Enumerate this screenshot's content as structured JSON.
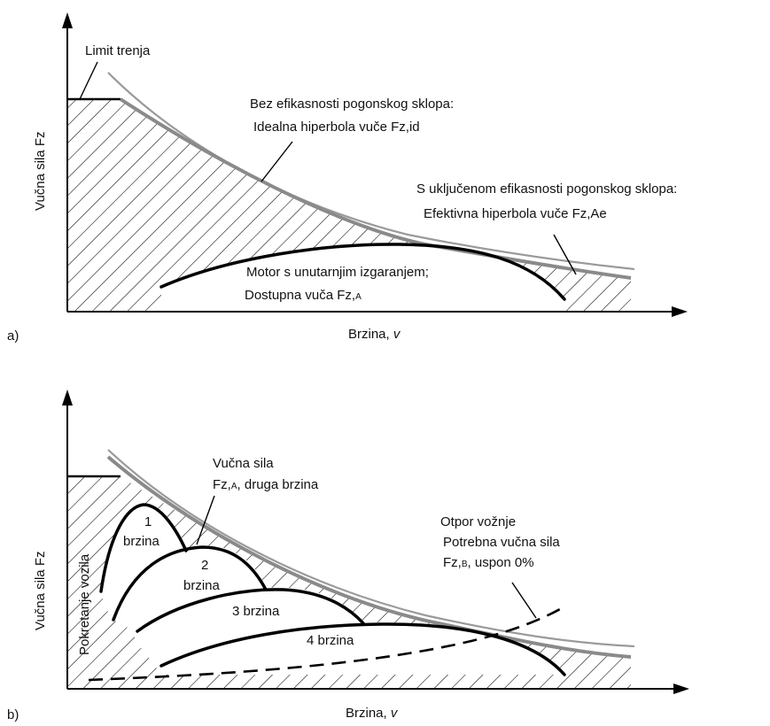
{
  "panel_a": {
    "label": "a)",
    "y_axis_label": "Vučna sila Fz",
    "x_axis_label": "Brzina, ",
    "x_axis_symbol": "v",
    "limit_label": "Limit trenja",
    "ideal_line1": "Bez efikasnosti pogonskog sklopa:",
    "ideal_line2": "Idealna hiperbola vuče Fz,id",
    "effective_line1": "S uključenom efikasnosti pogonskog sklopa:",
    "effective_line2": "Efektivna hiperbola vuče Fz,Ae",
    "engine_line1": "Motor s unutarnjim izgaranjem;",
    "engine_line2": "Dostupna vuča Fz,",
    "engine_line2_sub": "A"
  },
  "panel_b": {
    "label": "b)",
    "y_axis_label": "Vučna sila Fz",
    "x_axis_label": "Brzina, ",
    "x_axis_symbol": "v",
    "start_label": "Pokretanje vozila",
    "gear1_number": "1",
    "gear1_word": "brzina",
    "gear2_number": "2",
    "gear2_word": "brzina",
    "gear3_label": "3 brzina",
    "gear4_label": "4 brzina",
    "second_gear_line1": "Vučna sila",
    "second_gear_line2_pre": "Fz,",
    "second_gear_line2_sub": "A",
    "second_gear_line2_post": ", druga brzina",
    "resistance_line1": "Otpor vožnje",
    "resistance_line2": "Potrebna vučna sila",
    "resistance_line3_pre": "Fz,",
    "resistance_line3_sub": "B",
    "resistance_line3_post": ", uspon 0%"
  }
}
